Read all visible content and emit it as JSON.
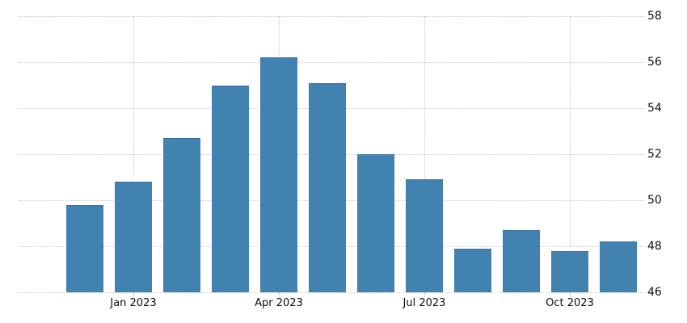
{
  "chart_data": {
    "type": "bar",
    "title": "",
    "xlabel": "",
    "ylabel": "",
    "categories": [
      "Dec 2022",
      "Jan 2023",
      "Feb 2023",
      "Mar 2023",
      "Apr 2023",
      "May 2023",
      "Jun 2023",
      "Jul 2023",
      "Aug 2023",
      "Sep 2023",
      "Oct 2023",
      "Nov 2023"
    ],
    "values": [
      49.8,
      50.8,
      52.7,
      55.0,
      56.2,
      55.1,
      52.0,
      50.9,
      47.9,
      48.7,
      47.8,
      48.2
    ],
    "x_tick_labels": [
      "Jan 2023",
      "Apr 2023",
      "Jul 2023",
      "Oct 2023"
    ],
    "x_tick_category_indices": [
      1,
      4,
      7,
      10
    ],
    "y_ticks": [
      46,
      48,
      50,
      52,
      54,
      56,
      58
    ],
    "y_tick_labels": [
      "46",
      "48",
      "50",
      "52",
      "54",
      "56",
      "58"
    ],
    "ylim": [
      46,
      58
    ],
    "y_axis_position": "right",
    "grid": "dotted",
    "legend": null,
    "bar_color": "#4282b1",
    "bar_edge_color": "#36719e",
    "grid_color": "#c9c9c9",
    "label_color": "#101014",
    "background_color": "#ffffff"
  }
}
